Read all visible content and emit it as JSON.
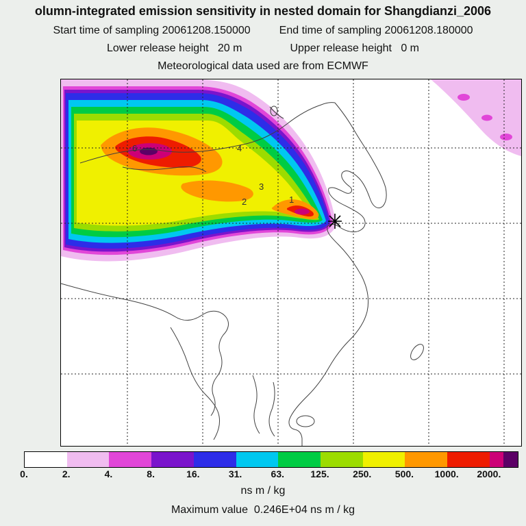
{
  "header": {
    "title": "olumn-integrated emission sensitivity in nested domain for Shangdianzi_2006",
    "start_time": "Start time of sampling 20061208.150000",
    "end_time": "End time of sampling 20061208.180000",
    "lower_release": "Lower release height   20 m",
    "upper_release": "Upper release height   0 m",
    "met_data": "Meteorological data used are from ECMWF"
  },
  "palette": {
    "white": "#ffffff",
    "pink": "#f0bcf0",
    "magenta": "#e146d8",
    "purple": "#7a14cc",
    "blue": "#2d2de8",
    "cyan": "#00c8f0",
    "green": "#00cc44",
    "yellow_green": "#9cdc00",
    "yellow": "#f0f000",
    "orange": "#ff9800",
    "red": "#ee1c00",
    "crimson": "#cc0077",
    "dark_purple": "#5c0066"
  },
  "map": {
    "labels": [
      {
        "text": "1"
      },
      {
        "text": "2"
      },
      {
        "text": "3"
      },
      {
        "text": "4"
      },
      {
        "text": "6"
      }
    ],
    "station_marker": "star"
  },
  "colorbar": {
    "segments": [
      "#ffffff",
      "#f0bcf0",
      "#e146d8",
      "#7a14cc",
      "#2d2de8",
      "#00c8f0",
      "#00cc44",
      "#9cdc00",
      "#f0f000",
      "#ff9800",
      "#ee1c00",
      "#cc0077",
      "#5c0066"
    ],
    "ticks": [
      "0.",
      "2.",
      "4.",
      "8.",
      "16.",
      "31.",
      "63.",
      "125.",
      "250.",
      "500.",
      "1000.",
      "2000."
    ],
    "units": "ns m / kg",
    "max_label": "Maximum value  0.246E+04 ns m / kg"
  },
  "chart_data": {
    "type": "heatmap",
    "title": "olumn-integrated emission sensitivity in nested domain for Shangdianzi_2006",
    "variable": "column-integrated emission sensitivity",
    "units": "ns m / kg",
    "station": "Shangdianzi",
    "sampling_start": "20061208.150000",
    "sampling_end": "20061208.180000",
    "lower_release_height_m": 20,
    "upper_release_height_m": 0,
    "meteorology": "ECMWF",
    "colorbar_levels": [
      0,
      2,
      4,
      8,
      16,
      31,
      63,
      125,
      250,
      500,
      1000,
      2000
    ],
    "colorbar_colors": [
      "#ffffff",
      "#f0bcf0",
      "#e146d8",
      "#7a14cc",
      "#2d2de8",
      "#00c8f0",
      "#00cc44",
      "#9cdc00",
      "#f0f000",
      "#ff9800",
      "#ee1c00",
      "#cc0077",
      "#5c0066"
    ],
    "maximum_value": "0.246E+04",
    "trajectory_hour_labels": [
      "1",
      "2",
      "3",
      "4",
      "6"
    ],
    "legend_position": "bottom",
    "grid": "dashed lat/lon gridlines",
    "plume_description": "Emission sensitivity plume extends west-northwest from the Shangdianzi station marker (star) across northern China and Mongolia to the western and northern domain edges; highest sensitivities (red to magenta bands) lie in the plume core; a separate low-sensitivity pink region occupies the northeast corner of the domain."
  }
}
